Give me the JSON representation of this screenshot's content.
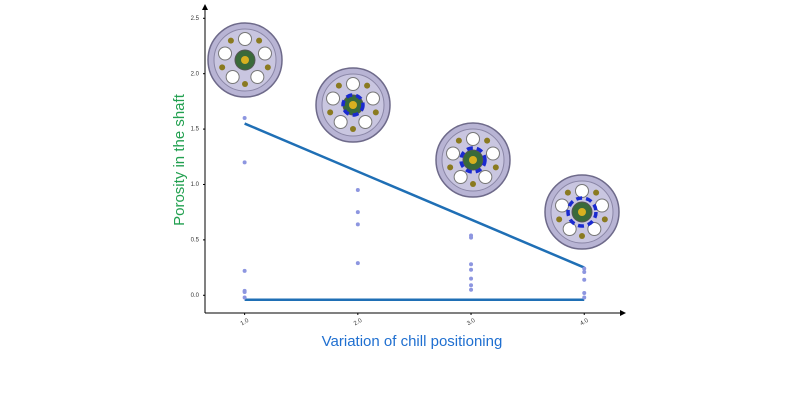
{
  "chart_data": {
    "type": "scatter",
    "x_label": "Variation of chill positioning",
    "y_label": "Porosity in the shaft",
    "x": [
      1,
      1,
      1,
      1,
      1,
      1,
      2,
      2,
      2,
      2,
      3,
      3,
      3,
      3,
      3,
      3,
      3,
      4,
      4,
      4,
      4,
      4
    ],
    "values": [
      1.6,
      1.2,
      0.22,
      0.04,
      0.03,
      -0.02,
      0.95,
      0.75,
      0.64,
      0.29,
      0.54,
      0.52,
      0.28,
      0.23,
      0.15,
      0.09,
      0.05,
      0.24,
      0.21,
      0.14,
      0.02,
      -0.02
    ],
    "color": "#8d96e0",
    "lines": [
      {
        "x": [
          1,
          4
        ],
        "values": [
          1.55,
          0.25
        ],
        "color": "#1f6fb5"
      },
      {
        "x": [
          1,
          4
        ],
        "values": [
          -0.04,
          -0.04
        ],
        "color": "#1f6fb5"
      }
    ],
    "xlim": [
      0.65,
      4.36
    ],
    "ylim": [
      -0.16,
      2.62
    ],
    "xticks": [
      {
        "value": 1,
        "label": "1.0"
      },
      {
        "value": 2,
        "label": "2.0"
      },
      {
        "value": 3,
        "label": "3.0"
      },
      {
        "value": 4,
        "label": "4.0"
      }
    ],
    "yticks": [
      {
        "value": 0,
        "label": "0.0"
      },
      {
        "value": 0.5,
        "label": "0.5"
      },
      {
        "value": 1,
        "label": "1.0"
      },
      {
        "value": 1.5,
        "label": "1.5"
      },
      {
        "value": 2,
        "label": "2.0"
      },
      {
        "value": 2.5,
        "label": "2.5"
      }
    ]
  }
}
